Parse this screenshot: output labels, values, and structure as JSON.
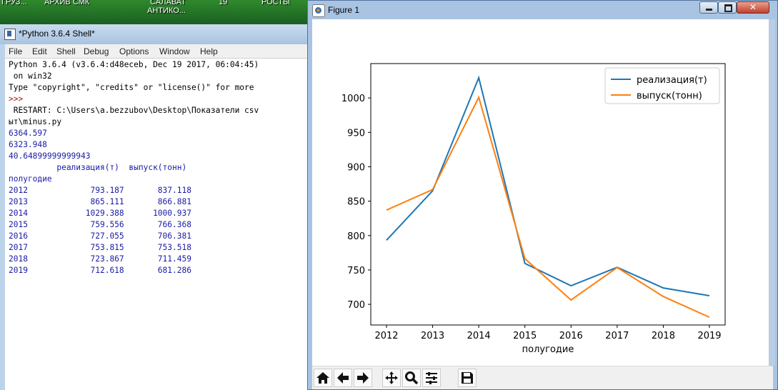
{
  "desktop": {
    "labels": [
      "ГРУЗ...",
      "АРХИВ СМК",
      "САЛАВАТ",
      "АНТИКО...",
      "19",
      "РОСТЫ"
    ]
  },
  "shell": {
    "title": "*Python 3.6.4 Shell*",
    "menu": [
      "File",
      "Edit",
      "Shell",
      "Debug",
      "Options",
      "Window",
      "Help"
    ],
    "lines": [
      "Python 3.6.4 (v3.6.4:d48eceb, Dec 19 2017, 06:04:45)",
      " on win32",
      "Type \"copyright\", \"credits\" or \"license()\" for more",
      ">>>",
      " RESTART: C:\\Users\\a.bezzubov\\Desktop\\Показатели csv",
      "ыт\\minus.py",
      "6364.597",
      "6323.948",
      "40.64899999999943",
      "          реализация(т)  выпуск(тонн)",
      "полугодие",
      "2012             793.187       837.118",
      "2013             865.111       866.881",
      "2014            1029.388      1000.937",
      "2015             759.556       766.368",
      "2016             727.055       706.381",
      "2017             753.815       753.518",
      "2018             723.867       711.459",
      "2019             712.618       681.286"
    ]
  },
  "figure": {
    "title": "Figure 1",
    "close_label": "✕",
    "toolbar": [
      "home-icon",
      "back-icon",
      "forward-icon",
      "pan-icon",
      "zoom-icon",
      "configure-subplots-icon",
      "save-icon"
    ]
  },
  "chart_data": {
    "type": "line",
    "x": [
      2012,
      2013,
      2014,
      2015,
      2016,
      2017,
      2018,
      2019
    ],
    "xlabel": "полугодие",
    "ylabel": "",
    "ylim": [
      670,
      1050
    ],
    "yticks": [
      700,
      750,
      800,
      850,
      900,
      950,
      1000
    ],
    "legend_position": "top-right",
    "series": [
      {
        "name": "реализация(т)",
        "color": "#1f77b4",
        "values": [
          793.187,
          865.111,
          1029.388,
          759.556,
          727.055,
          753.815,
          723.867,
          712.618
        ]
      },
      {
        "name": "выпуск(тонн)",
        "color": "#ff7f0e",
        "values": [
          837.118,
          866.881,
          1000.937,
          766.368,
          706.381,
          753.518,
          711.459,
          681.286
        ]
      }
    ]
  }
}
